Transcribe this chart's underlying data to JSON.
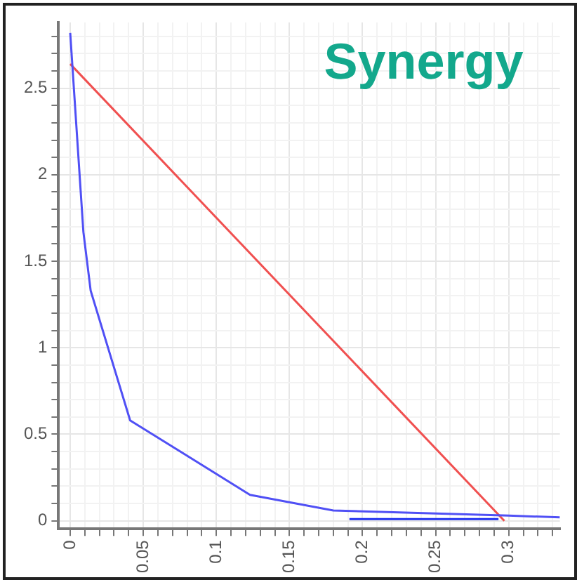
{
  "chart_data": {
    "type": "line",
    "title": "Synergy",
    "series": [
      {
        "color": "#5050f5",
        "x": [
          0,
          0.009,
          0.014,
          0.041,
          0.123,
          0.18,
          0.3,
          0.335
        ],
        "values": [
          2.82,
          1.67,
          1.33,
          0.58,
          0.15,
          0.06,
          0.03,
          0.02
        ]
      },
      {
        "color": "#2030f0",
        "x": [
          0.191,
          0.293
        ],
        "values": [
          0.01,
          0.01
        ]
      },
      {
        "color": "#f05050",
        "x": [
          0,
          0.297
        ],
        "values": [
          2.64,
          0
        ]
      }
    ],
    "xlim": [
      -0.008,
      0.335
    ],
    "ylim": [
      -0.047,
      2.88
    ],
    "xticks": [
      0,
      {
        "value": 0.01,
        "label": null
      },
      {
        "value": 0.02,
        "label": null
      },
      {
        "value": 0.03,
        "label": null
      },
      {
        "value": 0.04,
        "label": null
      },
      0.05,
      {
        "value": 0.06,
        "label": null
      },
      {
        "value": 0.07,
        "label": null
      },
      {
        "value": 0.08,
        "label": null
      },
      {
        "value": 0.09,
        "label": null
      },
      0.1,
      {
        "value": 0.11,
        "label": null
      },
      {
        "value": 0.12,
        "label": null
      },
      {
        "value": 0.13,
        "label": null
      },
      {
        "value": 0.14,
        "label": null
      },
      0.15,
      {
        "value": 0.16,
        "label": null
      },
      {
        "value": 0.17,
        "label": null
      },
      {
        "value": 0.18,
        "label": null
      },
      {
        "value": 0.19,
        "label": null
      },
      0.2,
      {
        "value": 0.21,
        "label": null
      },
      {
        "value": 0.22,
        "label": null
      },
      {
        "value": 0.23,
        "label": null
      },
      {
        "value": 0.24,
        "label": null
      },
      0.25,
      {
        "value": 0.26,
        "label": null
      },
      {
        "value": 0.27,
        "label": null
      },
      {
        "value": 0.28,
        "label": null
      },
      {
        "value": 0.29,
        "label": null
      },
      0.3,
      {
        "value": 0.31,
        "label": null
      },
      {
        "value": 0.32,
        "label": null
      },
      {
        "value": 0.33,
        "label": null
      }
    ],
    "yticks": [
      0,
      {
        "value": 0.1,
        "label": null
      },
      {
        "value": 0.2,
        "label": null
      },
      {
        "value": 0.3,
        "label": null
      },
      {
        "value": 0.4,
        "label": null
      },
      0.5,
      {
        "value": 0.6,
        "label": null
      },
      {
        "value": 0.7,
        "label": null
      },
      {
        "value": 0.8,
        "label": null
      },
      {
        "value": 0.9,
        "label": null
      },
      1,
      {
        "value": 1.1,
        "label": null
      },
      {
        "value": 1.2,
        "label": null
      },
      {
        "value": 1.3,
        "label": null
      },
      {
        "value": 1.4,
        "label": null
      },
      1.5,
      {
        "value": 1.6,
        "label": null
      },
      {
        "value": 1.7,
        "label": null
      },
      {
        "value": 1.8,
        "label": null
      },
      {
        "value": 1.9,
        "label": null
      },
      2,
      {
        "value": 2.1,
        "label": null
      },
      {
        "value": 2.2,
        "label": null
      },
      {
        "value": 2.3,
        "label": null
      },
      {
        "value": 2.4,
        "label": null
      },
      2.5,
      {
        "value": 2.6,
        "label": null
      },
      {
        "value": 2.7,
        "label": null
      },
      {
        "value": 2.8,
        "label": null
      }
    ],
    "grid": true,
    "legend": false,
    "marker": "none",
    "line_style": "solid"
  }
}
